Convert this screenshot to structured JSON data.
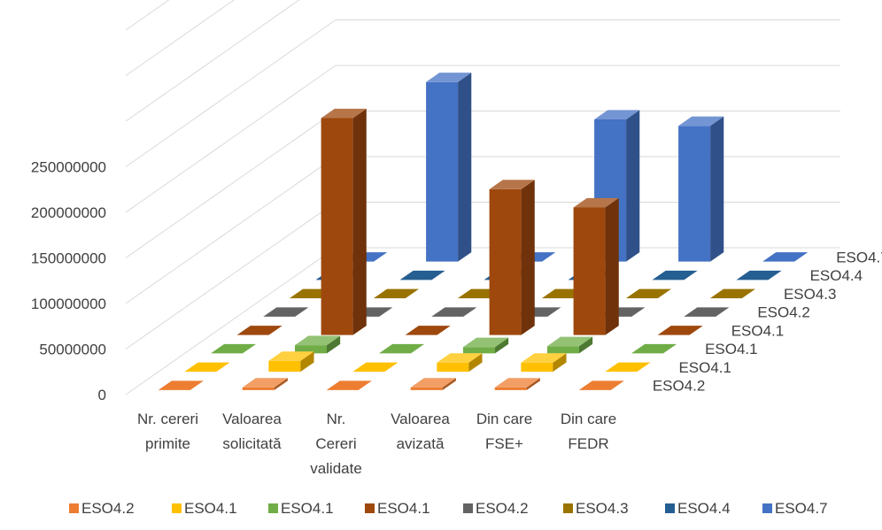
{
  "chart_data": {
    "type": "bar",
    "categories": [
      "Nr. cereri primite",
      "Valoarea solicitată",
      "Nr. Cereri validate",
      "Valoarea avizată",
      "Din care FSE+",
      "Din care FEDR"
    ],
    "category_lines": [
      [
        "Nr. cereri",
        "primite"
      ],
      [
        "Valoarea",
        "solicitată"
      ],
      [
        "Nr.",
        "Cereri",
        "validate"
      ],
      [
        "Valoarea",
        "avizată"
      ],
      [
        "Din  care",
        "FSE+"
      ],
      [
        "Din care",
        "FEDR"
      ]
    ],
    "y_ticks": [
      "0",
      "50000000",
      "100000000",
      "150000000",
      "200000000",
      "250000000"
    ],
    "ylim": [
      0,
      400000000
    ],
    "grid": true,
    "legend_position": "bottom",
    "series": [
      {
        "name": "ESO4.2",
        "color": "#ED7D31",
        "values": [
          0,
          3000000,
          0,
          3000000,
          3000000,
          0
        ]
      },
      {
        "name": "ESO4.1",
        "color": "#FFC000",
        "values": [
          0,
          12000000,
          0,
          10000000,
          10000000,
          0
        ]
      },
      {
        "name": "ESO4.1",
        "color": "#70AD47",
        "values": [
          0,
          9000000,
          0,
          7000000,
          8000000,
          0
        ]
      },
      {
        "name": "ESO4.1",
        "color": "#9E480E",
        "values": [
          0,
          238000000,
          0,
          160000000,
          140000000,
          0
        ]
      },
      {
        "name": "ESO4.2",
        "color": "#636363",
        "values": [
          0,
          0,
          0,
          0,
          0,
          0
        ]
      },
      {
        "name": "ESO4.3",
        "color": "#997300",
        "values": [
          0,
          0,
          0,
          0,
          0,
          0
        ]
      },
      {
        "name": "ESO4.4",
        "color": "#255E91",
        "values": [
          0,
          0,
          0,
          0,
          0,
          0
        ]
      },
      {
        "name": "ESO4.7",
        "color": "#4472C4",
        "values": [
          0,
          197000000,
          0,
          156000000,
          149000000,
          0
        ]
      }
    ]
  }
}
